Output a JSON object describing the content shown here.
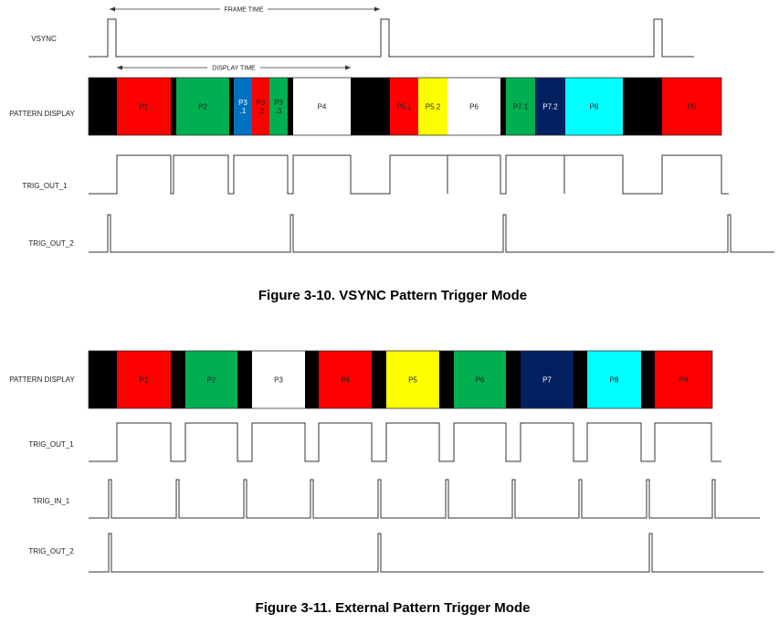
{
  "colors": {
    "black": "#000000",
    "red": "#ff0000",
    "green": "#00b050",
    "blue": "#0070c0",
    "white": "#ffffff",
    "yellow": "#ffff00",
    "navy": "#002060",
    "cyan": "#00ffff"
  },
  "fig1": {
    "caption": "Figure 3-10. VSYNC Pattern Trigger Mode",
    "frame_time": "FRAME TIME",
    "display_time": "DISPLAY TIME",
    "rows": {
      "vsync": "VSYNC",
      "pattern": "PATTERN DISPLAY",
      "trig_out_1": "TRIG_OUT_1",
      "trig_out_2": "TRIG_OUT_2"
    },
    "segments": [
      {
        "color": "black",
        "label": ""
      },
      {
        "color": "red",
        "label": "P1"
      },
      {
        "color": "black",
        "label": ""
      },
      {
        "color": "green",
        "label": "P2"
      },
      {
        "color": "black",
        "label": ""
      },
      {
        "color": "blue",
        "label": "P3\n.1"
      },
      {
        "color": "red",
        "label": "P3\n.2"
      },
      {
        "color": "green",
        "label": "P3\n.3"
      },
      {
        "color": "black",
        "label": ""
      },
      {
        "color": "white",
        "label": "P4"
      },
      {
        "color": "black",
        "label": ""
      },
      {
        "color": "red",
        "label": "P5.1"
      },
      {
        "color": "yellow",
        "label": "P5.2"
      },
      {
        "color": "white",
        "label": "P6"
      },
      {
        "color": "black",
        "label": ""
      },
      {
        "color": "green",
        "label": "P7.1"
      },
      {
        "color": "navy",
        "label": "P7.2"
      },
      {
        "color": "cyan",
        "label": "P8"
      },
      {
        "color": "black",
        "label": ""
      },
      {
        "color": "red",
        "label": "P9"
      }
    ]
  },
  "fig2": {
    "caption": "Figure 3-11. External Pattern Trigger Mode",
    "rows": {
      "pattern": "PATTERN DISPLAY",
      "trig_out_1": "TRIG_OUT_1",
      "trig_in_1": "TRIG_IN_1",
      "trig_out_2": "TRIG_OUT_2"
    },
    "segments": [
      {
        "color": "black",
        "label": ""
      },
      {
        "color": "red",
        "label": "P1"
      },
      {
        "color": "black",
        "label": ""
      },
      {
        "color": "green",
        "label": "P2"
      },
      {
        "color": "black",
        "label": ""
      },
      {
        "color": "white",
        "label": "P3"
      },
      {
        "color": "black",
        "label": ""
      },
      {
        "color": "red",
        "label": "P4"
      },
      {
        "color": "black",
        "label": ""
      },
      {
        "color": "yellow",
        "label": "P5"
      },
      {
        "color": "black",
        "label": ""
      },
      {
        "color": "green",
        "label": "P6"
      },
      {
        "color": "black",
        "label": ""
      },
      {
        "color": "navy",
        "label": "P7"
      },
      {
        "color": "black",
        "label": ""
      },
      {
        "color": "cyan",
        "label": "P8"
      },
      {
        "color": "black",
        "label": ""
      },
      {
        "color": "red",
        "label": "P9"
      }
    ]
  }
}
